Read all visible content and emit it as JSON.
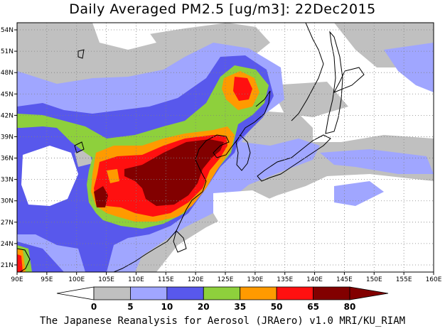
{
  "title": "Daily Averaged PM2.5 [ug/m3]: 22Dec2015",
  "credit": "The Japanese Reanalysis for Aerosol (JRAero) v1.0 MRI/KU_RIAM",
  "map": {
    "lon_range": [
      90,
      160
    ],
    "lat_range": [
      20,
      55
    ],
    "lon_ticks": [
      "90E",
      "95E",
      "100E",
      "105E",
      "110E",
      "115E",
      "120E",
      "125E",
      "130E",
      "135E",
      "140E",
      "145E",
      "150E",
      "155E",
      "160E"
    ],
    "lat_ticks": [
      "21N",
      "24N",
      "27N",
      "30N",
      "33N",
      "36N",
      "39N",
      "42N",
      "45N",
      "48N",
      "51N",
      "54N"
    ],
    "grid": "dotted",
    "ocean_color": "#ffffff",
    "coastline_color": "#000000"
  },
  "colorbar": {
    "labels": [
      "0",
      "5",
      "10",
      "20",
      "35",
      "50",
      "65",
      "80"
    ],
    "colors": [
      "#ffffff",
      "#c0c0c0",
      "#a0a6ff",
      "#5858ec",
      "#8ed03c",
      "#ff9a00",
      "#ff1010",
      "#820000"
    ],
    "arrow_min_color": "#ffffff",
    "arrow_max_color": "#820000"
  }
}
